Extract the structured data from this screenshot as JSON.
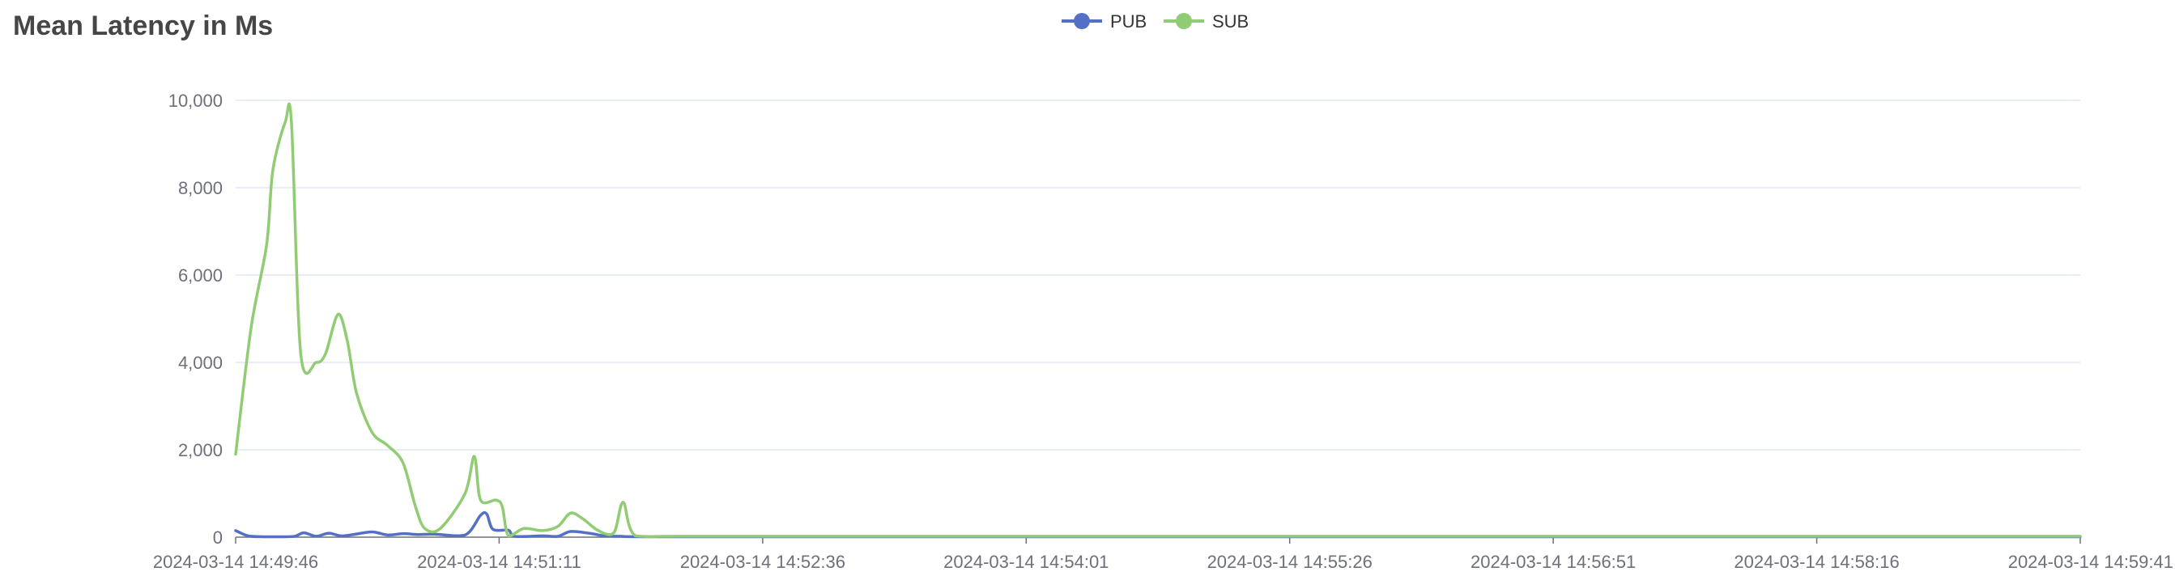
{
  "chart_data": {
    "type": "line",
    "title": "Mean Latency in Ms",
    "xlabel": "",
    "ylabel": "",
    "ylim": [
      0,
      10000
    ],
    "y_ticks": [
      0,
      2000,
      4000,
      6000,
      8000,
      10000
    ],
    "y_tick_labels": [
      "0",
      "2,000",
      "4,000",
      "6,000",
      "8,000",
      "10,000"
    ],
    "x_range": [
      "2024-03-14 14:49:46",
      "2024-03-14 14:59:41"
    ],
    "x_ticks": [
      "2024-03-14 14:49:46",
      "2024-03-14 14:51:11",
      "2024-03-14 14:52:36",
      "2024-03-14 14:54:01",
      "2024-03-14 14:55:26",
      "2024-03-14 14:56:51",
      "2024-03-14 14:58:16",
      "2024-03-14 14:59:41"
    ],
    "grid": true,
    "legend_position": "top-center",
    "smooth": true,
    "series": [
      {
        "name": "PUB",
        "color": "#5470c6",
        "points": [
          [
            "2024-03-14 14:49:46",
            150
          ],
          [
            "2024-03-14 14:49:50",
            30
          ],
          [
            "2024-03-14 14:49:55",
            10
          ],
          [
            "2024-03-14 14:50:00",
            10
          ],
          [
            "2024-03-14 14:50:05",
            20
          ],
          [
            "2024-03-14 14:50:08",
            100
          ],
          [
            "2024-03-14 14:50:12",
            20
          ],
          [
            "2024-03-14 14:50:16",
            90
          ],
          [
            "2024-03-14 14:50:20",
            30
          ],
          [
            "2024-03-14 14:50:24",
            60
          ],
          [
            "2024-03-14 14:50:30",
            120
          ],
          [
            "2024-03-14 14:50:35",
            50
          ],
          [
            "2024-03-14 14:50:40",
            80
          ],
          [
            "2024-03-14 14:50:45",
            60
          ],
          [
            "2024-03-14 14:50:50",
            70
          ],
          [
            "2024-03-14 14:51:00",
            50
          ],
          [
            "2024-03-14 14:51:05",
            500
          ],
          [
            "2024-03-14 14:51:07",
            530
          ],
          [
            "2024-03-14 14:51:09",
            180
          ],
          [
            "2024-03-14 14:51:14",
            160
          ],
          [
            "2024-03-14 14:51:16",
            20
          ],
          [
            "2024-03-14 14:51:25",
            30
          ],
          [
            "2024-03-14 14:51:30",
            20
          ],
          [
            "2024-03-14 14:51:34",
            130
          ],
          [
            "2024-03-14 14:51:40",
            90
          ],
          [
            "2024-03-14 14:51:45",
            30
          ],
          [
            "2024-03-14 14:51:50",
            20
          ],
          [
            "2024-03-14 14:52:00",
            10
          ],
          [
            "2024-03-14 14:53:00",
            10
          ],
          [
            "2024-03-14 14:55:00",
            10
          ],
          [
            "2024-03-14 14:57:00",
            10
          ],
          [
            "2024-03-14 14:59:41",
            10
          ]
        ]
      },
      {
        "name": "SUB",
        "color": "#91cc75",
        "points": [
          [
            "2024-03-14 14:49:46",
            1900
          ],
          [
            "2024-03-14 14:49:51",
            4800
          ],
          [
            "2024-03-14 14:49:56",
            6700
          ],
          [
            "2024-03-14 14:49:58",
            8400
          ],
          [
            "2024-03-14 14:50:02",
            9500
          ],
          [
            "2024-03-14 14:50:04",
            9500
          ],
          [
            "2024-03-14 14:50:07",
            4200
          ],
          [
            "2024-03-14 14:50:12",
            4000
          ],
          [
            "2024-03-14 14:50:15",
            4200
          ],
          [
            "2024-03-14 14:50:19",
            5100
          ],
          [
            "2024-03-14 14:50:22",
            4500
          ],
          [
            "2024-03-14 14:50:25",
            3300
          ],
          [
            "2024-03-14 14:50:30",
            2400
          ],
          [
            "2024-03-14 14:50:35",
            2100
          ],
          [
            "2024-03-14 14:50:40",
            1700
          ],
          [
            "2024-03-14 14:50:44",
            700
          ],
          [
            "2024-03-14 14:50:47",
            200
          ],
          [
            "2024-03-14 14:50:52",
            200
          ],
          [
            "2024-03-14 14:51:00",
            1000
          ],
          [
            "2024-03-14 14:51:03",
            1850
          ],
          [
            "2024-03-14 14:51:05",
            850
          ],
          [
            "2024-03-14 14:51:10",
            850
          ],
          [
            "2024-03-14 14:51:12",
            700
          ],
          [
            "2024-03-14 14:51:14",
            30
          ],
          [
            "2024-03-14 14:51:19",
            200
          ],
          [
            "2024-03-14 14:51:25",
            150
          ],
          [
            "2024-03-14 14:51:30",
            250
          ],
          [
            "2024-03-14 14:51:34",
            550
          ],
          [
            "2024-03-14 14:51:38",
            420
          ],
          [
            "2024-03-14 14:51:43",
            150
          ],
          [
            "2024-03-14 14:51:48",
            100
          ],
          [
            "2024-03-14 14:51:51",
            800
          ],
          [
            "2024-03-14 14:51:55",
            30
          ],
          [
            "2024-03-14 14:52:10",
            20
          ],
          [
            "2024-03-14 14:53:00",
            20
          ],
          [
            "2024-03-14 14:54:00",
            20
          ],
          [
            "2024-03-14 14:55:00",
            20
          ],
          [
            "2024-03-14 14:57:00",
            20
          ],
          [
            "2024-03-14 14:59:41",
            20
          ]
        ]
      }
    ]
  }
}
